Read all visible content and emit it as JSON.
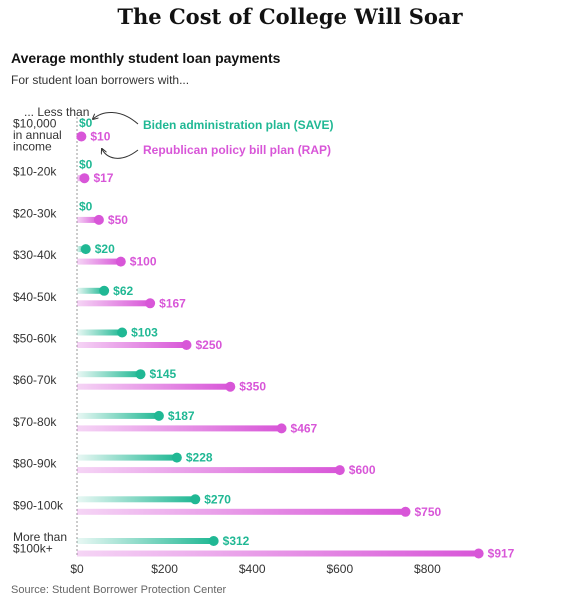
{
  "header": {
    "title": "The Cost of College Will Soar",
    "subtitle": "Average monthly student loan payments",
    "lead": "For student loan borrowers with...",
    "source": "Source: Student Borrower Protection Center"
  },
  "first_category_label_lines": [
    "... Less than",
    "$10,000",
    "in annual",
    "income"
  ],
  "last_category_label_lines": [
    "More than",
    "$100k+"
  ],
  "colors": {
    "save": "#20b894",
    "rap": "#d856d8"
  },
  "chart_data": {
    "type": "dot",
    "categories": [
      "Less than $10,000 in annual income",
      "$10-20k",
      "$20-30k",
      "$30-40k",
      "$40-50k",
      "$50-60k",
      "$60-70k",
      "$70-80k",
      "$80-90k",
      "$90-100k",
      "More than $100k+"
    ],
    "series": [
      {
        "name": "Biden administration plan (SAVE)",
        "values": [
          0,
          0,
          0,
          20,
          62,
          103,
          145,
          187,
          228,
          270,
          312
        ],
        "labels": [
          "$0",
          "$0",
          "$0",
          "$20",
          "$62",
          "$103",
          "$145",
          "$187",
          "$228",
          "$270",
          "$312"
        ]
      },
      {
        "name": "Republican policy bill plan (RAP)",
        "values": [
          10,
          17,
          50,
          100,
          167,
          250,
          350,
          467,
          600,
          750,
          917
        ],
        "labels": [
          "$10",
          "$17",
          "$50",
          "$100",
          "$167",
          "$250",
          "$350",
          "$467",
          "$600",
          "$750",
          "$917"
        ]
      }
    ],
    "x_ticks": [
      0,
      200,
      400,
      600,
      800
    ],
    "x_tick_labels": [
      "$0",
      "$200",
      "$400",
      "$600",
      "$800"
    ],
    "xlim": [
      0,
      917
    ],
    "legend": "annotations at top",
    "grid": false
  }
}
